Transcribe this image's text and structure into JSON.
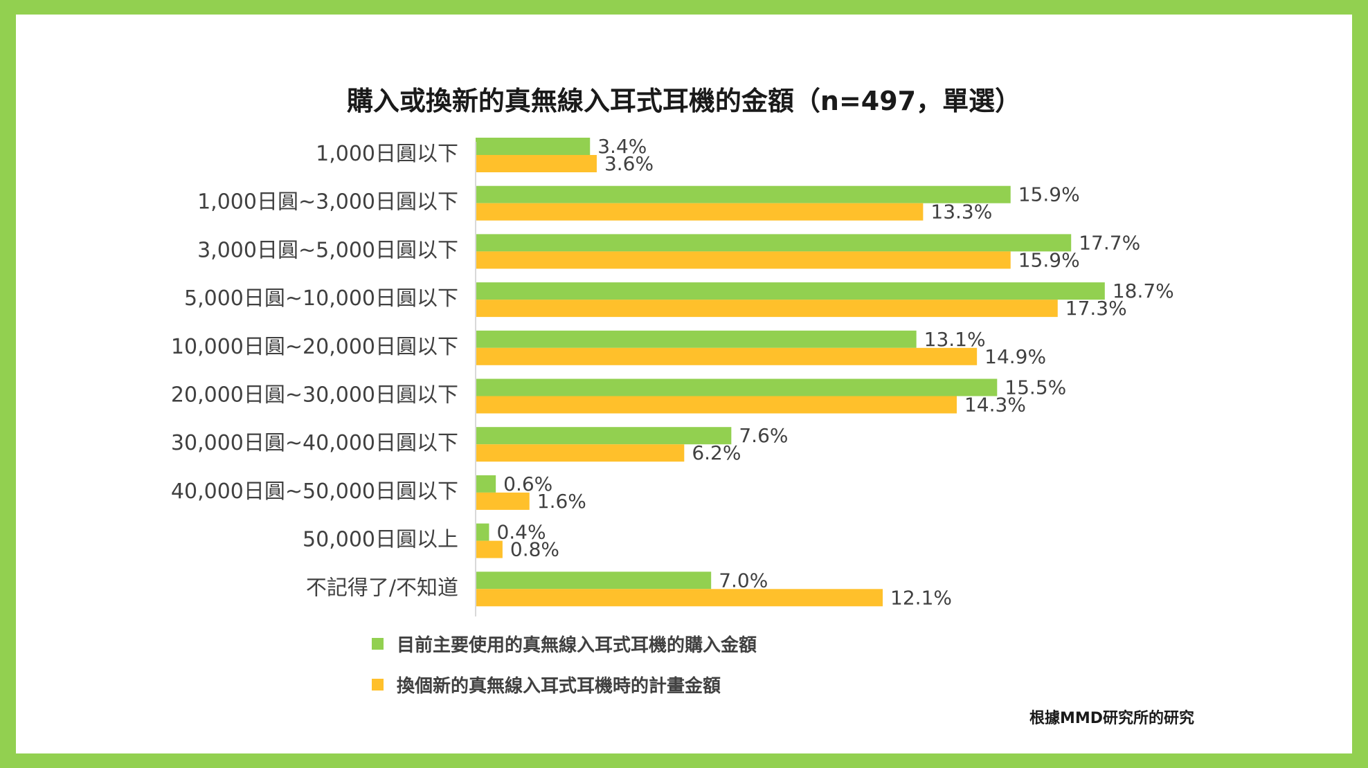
{
  "chart_data": {
    "type": "bar",
    "orientation": "horizontal",
    "title": "購入或換新的真無線入耳式耳機的金額（n=497，單選）",
    "categories": [
      "1,000日圓以下",
      "1,000日圓~3,000日圓以下",
      "3,000日圓~5,000日圓以下",
      "5,000日圓~10,000日圓以下",
      "10,000日圓~20,000日圓以下",
      "20,000日圓~30,000日圓以下",
      "30,000日圓~40,000日圓以下",
      "40,000日圓~50,000日圓以下",
      "50,000日圓以上",
      "不記得了/不知道"
    ],
    "series": [
      {
        "name": "目前主要使用的真無線入耳式耳機的購入金額",
        "color": "#92d050",
        "values": [
          3.4,
          15.9,
          17.7,
          18.7,
          13.1,
          15.5,
          7.6,
          0.6,
          0.4,
          7.0
        ],
        "labels": [
          "3.4%",
          "15.9%",
          "17.7%",
          "18.7%",
          "13.1%",
          "15.5%",
          "7.6%",
          "0.6%",
          "0.4%",
          "7.0%"
        ]
      },
      {
        "name": "換個新的真無線入耳式耳機時的計畫金額",
        "color": "#ffc02b",
        "values": [
          3.6,
          13.3,
          15.9,
          17.3,
          14.9,
          14.3,
          6.2,
          1.6,
          0.8,
          12.1
        ],
        "labels": [
          "3.6%",
          "13.3%",
          "15.9%",
          "17.3%",
          "14.9%",
          "14.3%",
          "6.2%",
          "1.6%",
          "0.8%",
          "12.1%"
        ]
      }
    ],
    "xlim": [
      0,
      20
    ],
    "grid": false,
    "legend_position": "bottom",
    "source": "根據MMD研究所的研究"
  },
  "colors": {
    "frame": "#92d050",
    "background": "#ffffff",
    "axis": "#d9d9d9"
  }
}
